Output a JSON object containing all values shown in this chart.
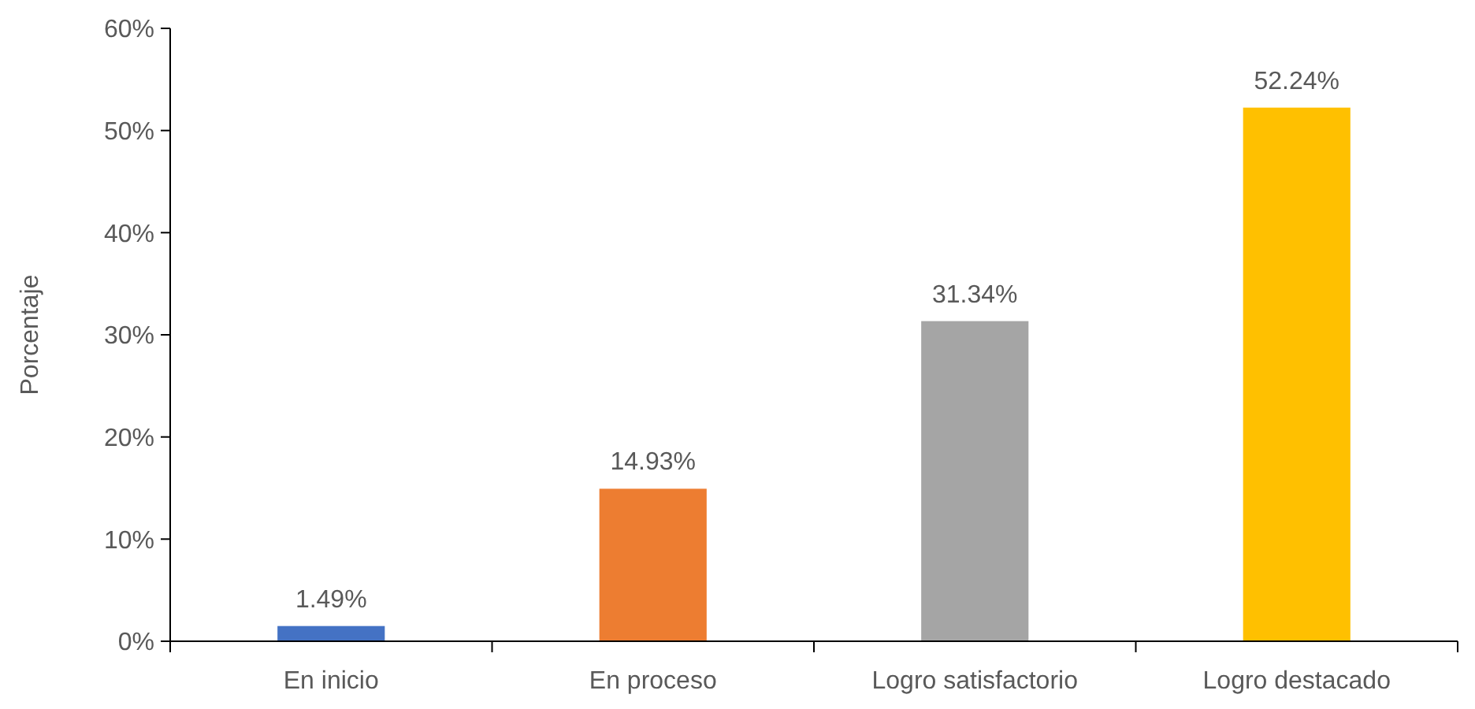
{
  "chart_data": {
    "type": "bar",
    "ylabel": "Porcentaje",
    "categories": [
      "En inicio",
      "En proceso",
      "Logro satisfactorio",
      "Logro destacado"
    ],
    "values": [
      1.49,
      14.93,
      31.34,
      52.24
    ],
    "colors": [
      "#4472c4",
      "#ed7d31",
      "#a5a5a5",
      "#ffc000"
    ],
    "value_labels": [
      "1.49%",
      "14.93%",
      "31.34%",
      "52.24%"
    ],
    "ylim": [
      0,
      60
    ],
    "yticks": [
      {
        "value": 0,
        "label": "0%"
      },
      {
        "value": 10,
        "label": "10%"
      },
      {
        "value": 20,
        "label": "20%"
      },
      {
        "value": 30,
        "label": "30%"
      },
      {
        "value": 40,
        "label": "40%"
      },
      {
        "value": 50,
        "label": "50%"
      },
      {
        "value": 60,
        "label": "60%"
      }
    ],
    "grid": false
  }
}
